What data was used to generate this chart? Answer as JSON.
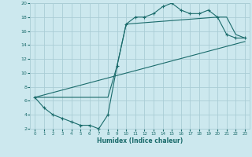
{
  "xlabel": "Humidex (Indice chaleur)",
  "xlim": [
    -0.5,
    23.5
  ],
  "ylim": [
    2,
    20
  ],
  "yticks": [
    2,
    4,
    6,
    8,
    10,
    12,
    14,
    16,
    18,
    20
  ],
  "xticks": [
    0,
    1,
    2,
    3,
    4,
    5,
    6,
    7,
    8,
    9,
    10,
    11,
    12,
    13,
    14,
    15,
    16,
    17,
    18,
    19,
    20,
    21,
    22,
    23
  ],
  "bg_color": "#cce8ee",
  "grid_color": "#aacdd5",
  "line_color": "#1a6b6b",
  "line1_x": [
    0,
    1,
    2,
    3,
    4,
    5,
    6,
    7,
    8,
    9,
    10,
    11,
    12,
    13,
    14,
    15,
    16,
    17,
    18,
    19,
    20,
    21,
    22,
    23
  ],
  "line1_y": [
    6.5,
    5.0,
    4.0,
    3.5,
    3.0,
    2.5,
    2.5,
    2.0,
    4.0,
    11.0,
    17.0,
    18.0,
    18.0,
    18.5,
    19.5,
    20.0,
    19.0,
    18.5,
    18.5,
    19.0,
    18.0,
    15.5,
    15.0,
    15.0
  ],
  "line2_x": [
    0,
    23
  ],
  "line2_y": [
    6.5,
    14.5
  ],
  "line3_x": [
    0,
    8,
    9,
    10,
    20,
    21,
    22,
    23
  ],
  "line3_y": [
    6.5,
    6.5,
    11.0,
    17.0,
    18.0,
    18.0,
    15.5,
    15.0
  ]
}
